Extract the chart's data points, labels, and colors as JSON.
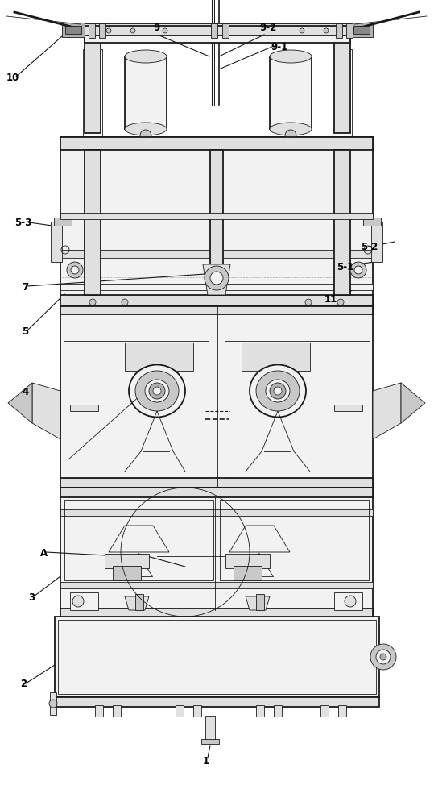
{
  "bg_color": "#ffffff",
  "lc": "#1a1a1a",
  "lw_main": 1.3,
  "lw_thin": 0.6,
  "lw_thick": 2.0,
  "fc_light": "#f2f2f2",
  "fc_mid": "#e0e0e0",
  "fc_dark": "#c8c8c8",
  "fc_darker": "#b0b0b0"
}
